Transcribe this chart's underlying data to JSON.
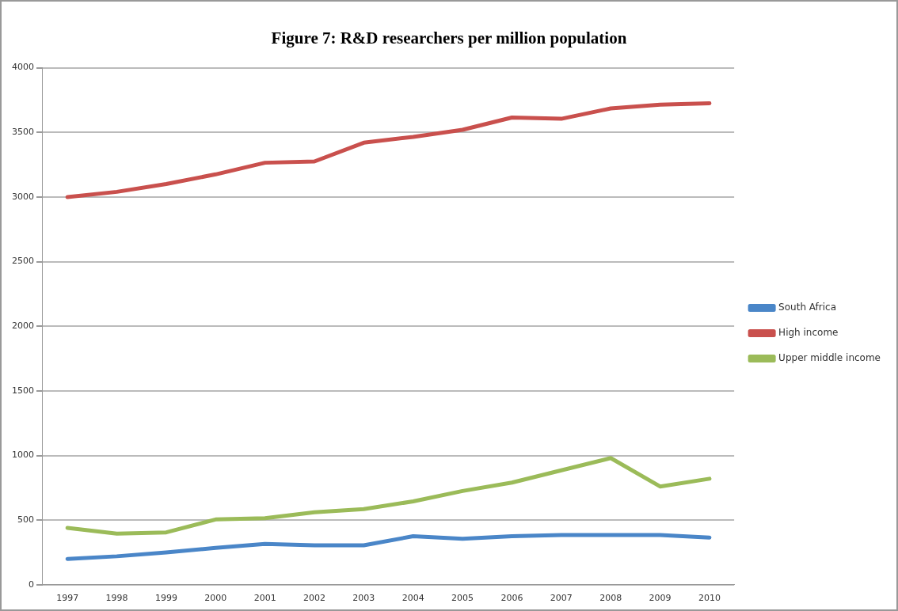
{
  "chart_data": {
    "type": "line",
    "title": "Figure 7: R&D researchers per million population",
    "categories": [
      "1997",
      "1998",
      "1999",
      "2000",
      "2001",
      "2002",
      "2003",
      "2004",
      "2005",
      "2006",
      "2007",
      "2008",
      "2009",
      "2010"
    ],
    "series": [
      {
        "name": "South Africa",
        "color": "#4a86c8",
        "values": [
          200,
          220,
          250,
          285,
          315,
          305,
          305,
          375,
          355,
          375,
          385,
          385,
          385,
          365
        ]
      },
      {
        "name": "High income",
        "color": "#c9504d",
        "values": [
          3000,
          3040,
          3100,
          3175,
          3265,
          3275,
          3420,
          3465,
          3520,
          3615,
          3605,
          3685,
          3715,
          3725
        ]
      },
      {
        "name": "Upper middle income",
        "color": "#9bbb59",
        "values": [
          440,
          395,
          405,
          505,
          515,
          560,
          585,
          645,
          725,
          790,
          885,
          980,
          760,
          820
        ]
      }
    ],
    "ylim": [
      0,
      4000
    ],
    "yticks": [
      0,
      500,
      1000,
      1500,
      2000,
      2500,
      3000,
      3500,
      4000
    ],
    "grid": "y",
    "legend": "right",
    "marker": "none",
    "line_style": "solid"
  }
}
